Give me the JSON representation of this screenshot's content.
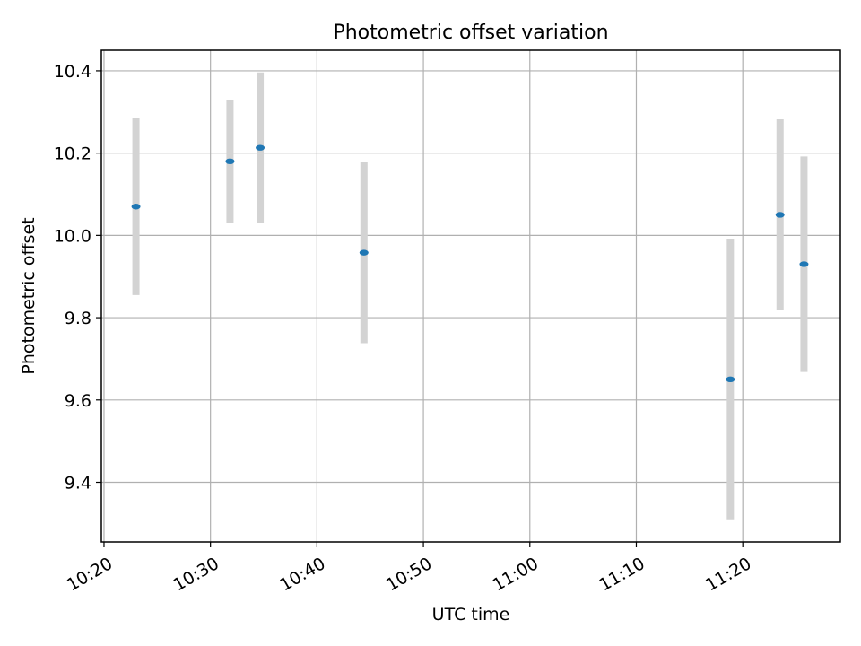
{
  "chart_data": {
    "type": "scatter",
    "title": "Photometric offset variation",
    "xlabel": "UTC time",
    "ylabel": "Photometric offset",
    "x_ticks": [
      "10:20",
      "10:30",
      "10:40",
      "10:50",
      "11:00",
      "11:10",
      "11:20"
    ],
    "y_ticks": [
      "9.4",
      "9.6",
      "9.8",
      "10.0",
      "10.2",
      "10.4"
    ],
    "xlim": [
      "10:19:45",
      "11:29:10"
    ],
    "ylim": [
      9.255,
      10.45
    ],
    "grid": true,
    "series": [
      {
        "marker": "ellipse",
        "color": "#1f77b4",
        "errorbar_color": "#d3d3d3",
        "points": [
          {
            "x": "10:23:00",
            "y": 10.07,
            "yerr": 0.215
          },
          {
            "x": "10:31:50",
            "y": 10.18,
            "yerr": 0.15
          },
          {
            "x": "10:34:40",
            "y": 10.213,
            "yerr": 0.183
          },
          {
            "x": "10:44:25",
            "y": 9.958,
            "yerr": 0.22
          },
          {
            "x": "11:18:50",
            "y": 9.65,
            "yerr": 0.342
          },
          {
            "x": "11:23:30",
            "y": 10.05,
            "yerr": 0.232
          },
          {
            "x": "11:25:45",
            "y": 9.93,
            "yerr": 0.262
          }
        ]
      }
    ]
  }
}
